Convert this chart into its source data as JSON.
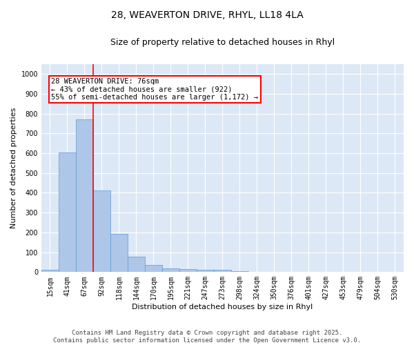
{
  "title_line1": "28, WEAVERTON DRIVE, RHYL, LL18 4LA",
  "title_line2": "Size of property relative to detached houses in Rhyl",
  "xlabel": "Distribution of detached houses by size in Rhyl",
  "ylabel": "Number of detached properties",
  "categories": [
    "15sqm",
    "41sqm",
    "67sqm",
    "92sqm",
    "118sqm",
    "144sqm",
    "170sqm",
    "195sqm",
    "221sqm",
    "247sqm",
    "273sqm",
    "298sqm",
    "324sqm",
    "350sqm",
    "376sqm",
    "401sqm",
    "427sqm",
    "453sqm",
    "479sqm",
    "504sqm",
    "530sqm"
  ],
  "values": [
    13,
    605,
    770,
    413,
    192,
    78,
    37,
    18,
    15,
    13,
    12,
    5,
    0,
    0,
    0,
    0,
    0,
    0,
    0,
    0,
    0
  ],
  "bar_color": "#aec6e8",
  "bar_edge_color": "#5b9bd5",
  "vline_x": 2.5,
  "vline_color": "red",
  "annotation_text": "28 WEAVERTON DRIVE: 76sqm\n← 43% of detached houses are smaller (922)\n55% of semi-detached houses are larger (1,172) →",
  "annotation_box_color": "red",
  "annotation_box_facecolor": "white",
  "ylim": [
    0,
    1050
  ],
  "yticks": [
    0,
    100,
    200,
    300,
    400,
    500,
    600,
    700,
    800,
    900,
    1000
  ],
  "background_color": "#dce8f5",
  "grid_color": "white",
  "footer_text": "Contains HM Land Registry data © Crown copyright and database right 2025.\nContains public sector information licensed under the Open Government Licence v3.0.",
  "title_fontsize": 10,
  "subtitle_fontsize": 9,
  "axis_label_fontsize": 8,
  "tick_fontsize": 7,
  "annotation_fontsize": 7.5,
  "footer_fontsize": 6.5
}
